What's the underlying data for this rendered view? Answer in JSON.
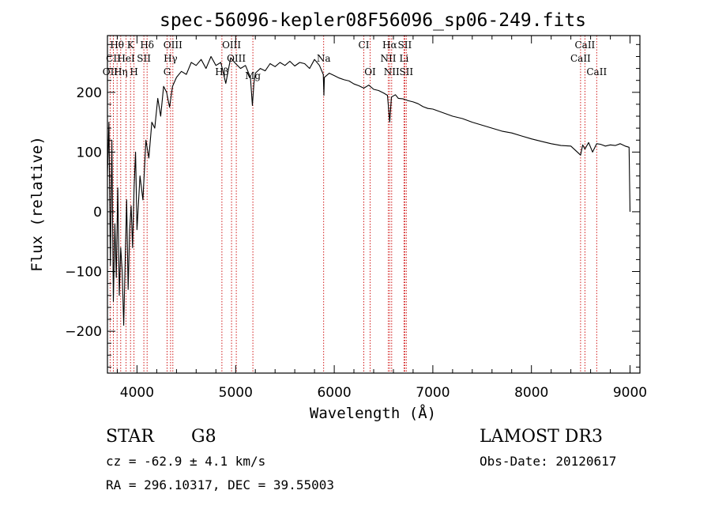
{
  "chart_data": {
    "type": "line",
    "title": "spec-56096-kepler08F56096_sp06-249.fits",
    "xlabel": "Wavelength (Å)",
    "ylabel": "Flux (relative)",
    "xlim": [
      3700,
      9100
    ],
    "ylim": [
      -270,
      295
    ],
    "xticks": [
      4000,
      5000,
      6000,
      7000,
      8000,
      9000
    ],
    "yticks": [
      -200,
      -100,
      0,
      100,
      200
    ],
    "grid": false,
    "series": [
      {
        "name": "spectrum",
        "x": [
          3700,
          3715,
          3730,
          3745,
          3760,
          3775,
          3790,
          3805,
          3820,
          3835,
          3850,
          3865,
          3880,
          3895,
          3910,
          3925,
          3940,
          3955,
          3970,
          3985,
          4000,
          4030,
          4060,
          4090,
          4120,
          4150,
          4180,
          4210,
          4240,
          4270,
          4300,
          4330,
          4360,
          4400,
          4450,
          4500,
          4550,
          4600,
          4650,
          4700,
          4750,
          4800,
          4850,
          4900,
          4950,
          5000,
          5050,
          5100,
          5150,
          5170,
          5185,
          5200,
          5250,
          5300,
          5350,
          5400,
          5450,
          5500,
          5550,
          5600,
          5650,
          5700,
          5750,
          5800,
          5850,
          5889,
          5895,
          5900,
          5950,
          6000,
          6050,
          6100,
          6150,
          6200,
          6250,
          6300,
          6350,
          6400,
          6450,
          6500,
          6540,
          6563,
          6580,
          6620,
          6650,
          6700,
          6750,
          6800,
          6850,
          6900,
          6950,
          7000,
          7100,
          7200,
          7300,
          7400,
          7500,
          7600,
          7700,
          7800,
          7900,
          8000,
          8100,
          8200,
          8300,
          8400,
          8498,
          8520,
          8542,
          8580,
          8620,
          8662,
          8700,
          8750,
          8800,
          8850,
          8900,
          8950,
          8990,
          9000
        ],
        "y": [
          60,
          150,
          -90,
          120,
          -150,
          -20,
          -110,
          40,
          -140,
          -60,
          -100,
          -190,
          -80,
          20,
          -130,
          -30,
          10,
          -60,
          40,
          100,
          -30,
          60,
          20,
          120,
          90,
          150,
          140,
          190,
          160,
          210,
          200,
          175,
          210,
          225,
          235,
          230,
          250,
          245,
          255,
          240,
          260,
          245,
          250,
          215,
          258,
          248,
          240,
          245,
          225,
          178,
          215,
          232,
          240,
          236,
          248,
          243,
          250,
          245,
          252,
          244,
          250,
          248,
          240,
          255,
          245,
          230,
          195,
          225,
          232,
          228,
          224,
          221,
          219,
          214,
          211,
          207,
          212,
          205,
          203,
          199,
          195,
          150,
          192,
          196,
          190,
          189,
          186,
          184,
          181,
          176,
          173,
          172,
          166,
          160,
          156,
          150,
          145,
          140,
          135,
          132,
          127,
          122,
          118,
          114,
          111,
          110,
          95,
          112,
          105,
          116,
          100,
          114,
          113,
          110,
          112,
          111,
          114,
          110,
          108,
          0
        ]
      }
    ],
    "line_markers": [
      {
        "label": "Hθ",
        "x": 3798,
        "row": 1
      },
      {
        "label": "CII",
        "x": 3760,
        "row": 2
      },
      {
        "label": "OII",
        "x": 3727,
        "row": 3
      },
      {
        "label": "K",
        "x": 3934,
        "row": 1
      },
      {
        "label": "HeI",
        "x": 3889,
        "row": 2
      },
      {
        "label": "Hη",
        "x": 3835,
        "row": 3
      },
      {
        "label": "Hδ",
        "x": 4102,
        "row": 1
      },
      {
        "label": "SII",
        "x": 4069,
        "row": 2
      },
      {
        "label": "H",
        "x": 3969,
        "row": 3
      },
      {
        "label": "OIII",
        "x": 4363,
        "row": 1
      },
      {
        "label": "Hγ",
        "x": 4340,
        "row": 2
      },
      {
        "label": "G",
        "x": 4305,
        "row": 3
      },
      {
        "label": "OIII",
        "x": 4959,
        "row": 1
      },
      {
        "label": "OIII",
        "x": 5007,
        "row": 2
      },
      {
        "label": "Hβ",
        "x": 4861,
        "row": 3
      },
      {
        "label": "Mg",
        "x": 5175,
        "row": 4
      },
      {
        "label": "Na",
        "x": 5893,
        "row": 2
      },
      {
        "label": "CI",
        "x": 6300,
        "row": 1
      },
      {
        "label": "OI",
        "x": 6364,
        "row": 3
      },
      {
        "label": "Hα",
        "x": 6563,
        "row": 1
      },
      {
        "label": "NII",
        "x": 6548,
        "row": 2
      },
      {
        "label": "NII",
        "x": 6583,
        "row": 3
      },
      {
        "label": "SII",
        "x": 6716,
        "row": 1
      },
      {
        "label": "Li",
        "x": 6708,
        "row": 2
      },
      {
        "label": "SII",
        "x": 6731,
        "row": 3
      },
      {
        "label": "CaII",
        "x": 8542,
        "row": 1
      },
      {
        "label": "CaII",
        "x": 8498,
        "row": 2
      },
      {
        "label": "CaII",
        "x": 8662,
        "row": 3
      }
    ]
  },
  "info": {
    "object_class": "STAR",
    "subclass": "G8",
    "survey": "LAMOST DR3",
    "redshift_text": "cz = -62.9 ± 4.1 km/s",
    "obs_date": "Obs-Date: 20120617",
    "coords": "RA = 296.10317, DEC =  39.55003"
  },
  "colors": {
    "spectrum": "#000000",
    "marker": "#cc0000",
    "axis": "#000000",
    "background": "#ffffff"
  }
}
